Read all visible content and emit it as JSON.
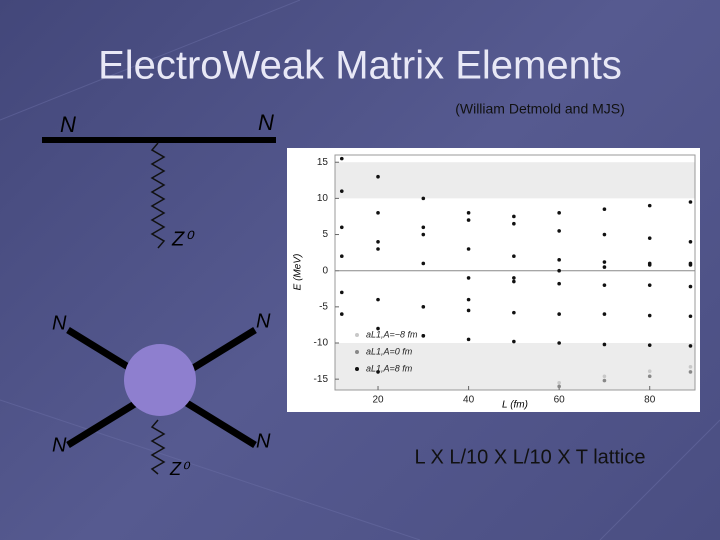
{
  "slide": {
    "title": "ElectroWeak Matrix Elements",
    "subtitle": "(William Detmold and MJS)",
    "caption": "L X L/10 X L/10 X T lattice",
    "diagram_top": {
      "left": "N",
      "right": "N",
      "boson": "Z⁰"
    },
    "diagram_bottom": {
      "top_left": "N",
      "top_right": "N",
      "bottom_left": "N",
      "bottom_right": "N",
      "boson": "Z⁰"
    }
  },
  "chart_data": {
    "type": "scatter",
    "x_label": "L (fm)",
    "y_label": "E (MeV)",
    "xlim": [
      10.5,
      90
    ],
    "ylim": [
      -16.5,
      16
    ],
    "xticks": [
      20,
      40,
      60,
      80
    ],
    "yticks": [
      -15,
      -10,
      -5,
      0,
      5,
      10,
      15
    ],
    "series": [
      {
        "name": "aL1,A=−8 fm",
        "color": "#c8c8c8",
        "curves": [
          {
            "x": [
              60,
              70,
              80,
              89
            ],
            "y": [
              -15.5,
              -14.6,
              -13.9,
              -13.3
            ]
          }
        ]
      },
      {
        "name": "aL1,A=0 fm",
        "color": "#888888",
        "curves": [
          {
            "x": [
              60,
              70,
              80,
              89
            ],
            "y": [
              -16,
              -15.2,
              -14.6,
              -14
            ]
          }
        ]
      },
      {
        "name": "aL1,A=8 fm",
        "color": "#111111",
        "curves": [
          {
            "x": [
              12,
              20,
              30,
              40,
              50,
              60,
              70,
              80,
              89
            ],
            "y": [
              15.5,
              13,
              10,
              8,
              6.5,
              5.5,
              5,
              4.5,
              4
            ]
          },
          {
            "x": [
              12,
              20,
              30,
              40,
              50,
              60,
              70,
              80,
              89
            ],
            "y": [
              11,
              8,
              5,
              3,
              2,
              1.5,
              1.2,
              1,
              0.8
            ]
          },
          {
            "x": [
              12,
              20,
              30,
              40,
              50,
              60,
              70,
              80,
              89
            ],
            "y": [
              6,
              3,
              1,
              -1,
              -1.5,
              -1.8,
              -2,
              -2,
              -2.2
            ]
          },
          {
            "x": [
              12,
              20,
              30,
              40,
              50,
              60,
              70,
              80,
              89
            ],
            "y": [
              -3,
              -4,
              -5,
              -5.5,
              -5.8,
              -6,
              -6,
              -6.2,
              -6.3
            ]
          },
          {
            "x": [
              12,
              20,
              30,
              40,
              50,
              60,
              70,
              80,
              89
            ],
            "y": [
              -6,
              -8,
              -9,
              -9.5,
              -9.8,
              -10,
              -10.2,
              -10.3,
              -10.4
            ]
          },
          {
            "x": [
              20,
              30,
              40,
              50,
              60,
              70,
              80,
              89
            ],
            "y": [
              -14,
              -9,
              -4,
              -1,
              0,
              0.5,
              0.8,
              1
            ]
          },
          {
            "x": [
              12,
              20,
              30,
              40,
              50,
              60,
              70,
              80,
              89
            ],
            "y": [
              2,
              4,
              6,
              7,
              7.5,
              8,
              8.5,
              9,
              9.5
            ]
          }
        ]
      }
    ]
  }
}
